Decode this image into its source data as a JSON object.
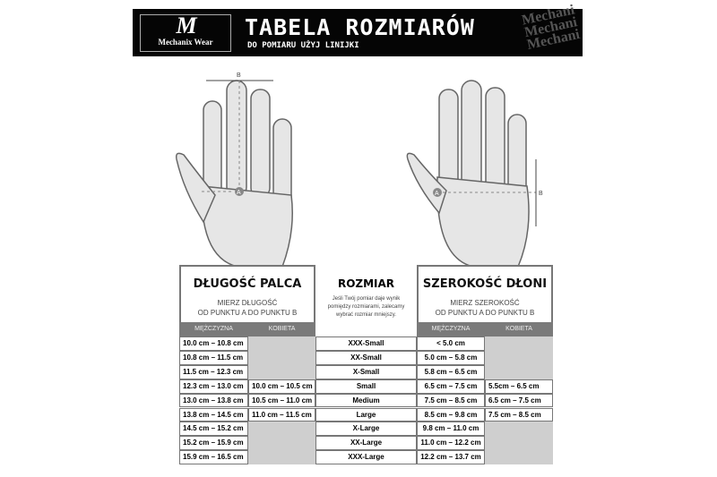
{
  "header": {
    "logo_text": "Mechanix Wear",
    "title": "TABELA ROZMIARÓW",
    "subtitle": "DO POMIARU UŻYJ LINIJKI",
    "watermark": "Mechanix"
  },
  "diagram": {
    "point_a": "A",
    "point_b": "B"
  },
  "finger_length": {
    "title": "DŁUGOŚĆ PALCA",
    "instruction_line1": "MIERZ DŁUGOŚĆ",
    "instruction_line2": "OD PUNKTU A DO PUNKTU B",
    "col_men": "MĘŻCZYZNA",
    "col_women": "KOBIETA"
  },
  "size": {
    "title": "ROZMIAR",
    "note": "Jeśli Twój pomiar daje wynik pomiędzy rozmiarami, zalecamy wybrać rozmiar mniejszy."
  },
  "palm_width": {
    "title": "SZEROKOŚĆ DŁONI",
    "instruction_line1": "MIERZ SZEROKOŚĆ",
    "instruction_line2": "OD PUNKTU A DO PUNKTU B",
    "col_men": "MĘŻCZYZNA",
    "col_women": "KOBIETA"
  },
  "rows": [
    {
      "finger_men": "10.0 cm – 10.8 cm",
      "finger_women": "",
      "size": "XXX-Small",
      "palm_men": "< 5.0 cm",
      "palm_women": ""
    },
    {
      "finger_men": "10.8 cm – 11.5 cm",
      "finger_women": "",
      "size": "XX-Small",
      "palm_men": "5.0 cm – 5.8 cm",
      "palm_women": ""
    },
    {
      "finger_men": "11.5 cm – 12.3 cm",
      "finger_women": "",
      "size": "X-Small",
      "palm_men": "5.8 cm – 6.5 cm",
      "palm_women": ""
    },
    {
      "finger_men": "12.3 cm – 13.0 cm",
      "finger_women": "10.0 cm – 10.5 cm",
      "size": "Small",
      "palm_men": "6.5 cm – 7.5 cm",
      "palm_women": "5.5cm – 6.5 cm"
    },
    {
      "finger_men": "13.0 cm – 13.8 cm",
      "finger_women": "10.5 cm – 11.0 cm",
      "size": "Medium",
      "palm_men": "7.5 cm – 8.5 cm",
      "palm_women": "6.5 cm – 7.5 cm"
    },
    {
      "finger_men": "13.8 cm – 14.5 cm",
      "finger_women": "11.0 cm – 11.5 cm",
      "size": "Large",
      "palm_men": "8.5 cm – 9.8 cm",
      "palm_women": "7.5 cm – 8.5 cm"
    },
    {
      "finger_men": "14.5 cm – 15.2 cm",
      "finger_women": "",
      "size": "X-Large",
      "palm_men": "9.8 cm – 11.0 cm",
      "palm_women": ""
    },
    {
      "finger_men": "15.2 cm – 15.9 cm",
      "finger_women": "",
      "size": "XX-Large",
      "palm_men": "11.0 cm – 12.2 cm",
      "palm_women": ""
    },
    {
      "finger_men": "15.9 cm – 16.5 cm",
      "finger_women": "",
      "size": "XXX-Large",
      "palm_men": "12.2 cm – 13.7 cm",
      "palm_women": ""
    }
  ]
}
